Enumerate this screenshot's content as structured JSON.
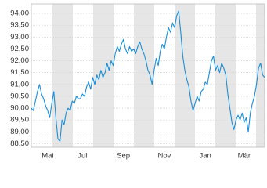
{
  "chart_data": {
    "type": "line",
    "color": "#1a8fd8",
    "grid": true,
    "categories": [
      null,
      null,
      null,
      null,
      null,
      null,
      null,
      null,
      "Mai",
      null,
      null,
      null,
      null,
      null,
      null,
      null,
      null,
      null,
      null,
      null,
      null,
      null,
      null,
      null,
      null,
      "Jul",
      null,
      null,
      null,
      null,
      null,
      null,
      null,
      null,
      null,
      null,
      null,
      null,
      null,
      null,
      null,
      null,
      null,
      null,
      null,
      "Sep",
      null,
      null,
      null,
      null,
      null,
      null,
      null,
      null,
      null,
      null,
      null,
      null,
      null,
      null,
      null,
      null,
      null,
      null,
      null,
      "Nov",
      null,
      null,
      null,
      null,
      null,
      null,
      null,
      null,
      null,
      null,
      null,
      null,
      null,
      null,
      null,
      null,
      null,
      null,
      null,
      "Jan",
      null,
      null,
      null,
      null,
      null,
      null,
      null,
      null,
      null,
      null,
      null,
      null,
      null,
      null,
      null,
      null,
      null,
      null,
      "Mär",
      null,
      null,
      null,
      null,
      null,
      null,
      null,
      null,
      null,
      null
    ],
    "values": [
      90.0,
      89.9,
      90.3,
      90.7,
      91.0,
      90.6,
      90.4,
      90.1,
      89.9,
      89.6,
      90.2,
      90.7,
      89.6,
      88.7,
      88.6,
      89.5,
      89.3,
      89.8,
      90.0,
      89.9,
      90.3,
      90.2,
      90.5,
      90.4,
      90.4,
      90.6,
      90.5,
      90.9,
      91.1,
      90.8,
      91.3,
      91.0,
      91.4,
      91.2,
      91.6,
      91.3,
      91.5,
      91.9,
      91.6,
      92.0,
      91.8,
      92.3,
      92.6,
      92.4,
      92.7,
      92.9,
      92.5,
      92.3,
      92.6,
      92.4,
      92.5,
      92.3,
      92.6,
      92.8,
      92.5,
      92.3,
      92.0,
      91.6,
      91.4,
      91.0,
      91.6,
      92.1,
      91.8,
      92.4,
      92.7,
      92.5,
      93.0,
      93.4,
      93.2,
      93.6,
      93.4,
      93.9,
      94.1,
      93.2,
      92.2,
      91.6,
      91.2,
      90.9,
      90.3,
      89.9,
      90.2,
      90.5,
      90.3,
      90.7,
      90.8,
      91.1,
      91.0,
      91.5,
      92.0,
      92.2,
      91.6,
      91.8,
      91.5,
      91.9,
      91.7,
      91.4,
      90.6,
      90.0,
      89.4,
      89.1,
      89.5,
      89.7,
      89.5,
      89.8,
      89.4,
      89.6,
      89.0,
      89.8,
      90.2,
      90.5,
      91.0,
      91.7,
      91.9,
      91.4,
      91.3
    ],
    "ylim": [
      88.35,
      94.4
    ],
    "yticks": [
      {
        "value": 88.5,
        "label": "88,50"
      },
      {
        "value": 89,
        "label": "89,00"
      },
      {
        "value": 89.5,
        "label": "89,50"
      },
      {
        "value": 90,
        "label": "90,00"
      },
      {
        "value": 90.5,
        "label": "90,50"
      },
      {
        "value": 91,
        "label": "91,00"
      },
      {
        "value": 91.5,
        "label": "91,50"
      },
      {
        "value": 92,
        "label": "92,00"
      },
      {
        "value": 92.5,
        "label": "92,50"
      },
      {
        "value": 93,
        "label": "93,00"
      },
      {
        "value": 93.5,
        "label": "93,50"
      },
      {
        "value": 94,
        "label": "94,00"
      }
    ]
  }
}
